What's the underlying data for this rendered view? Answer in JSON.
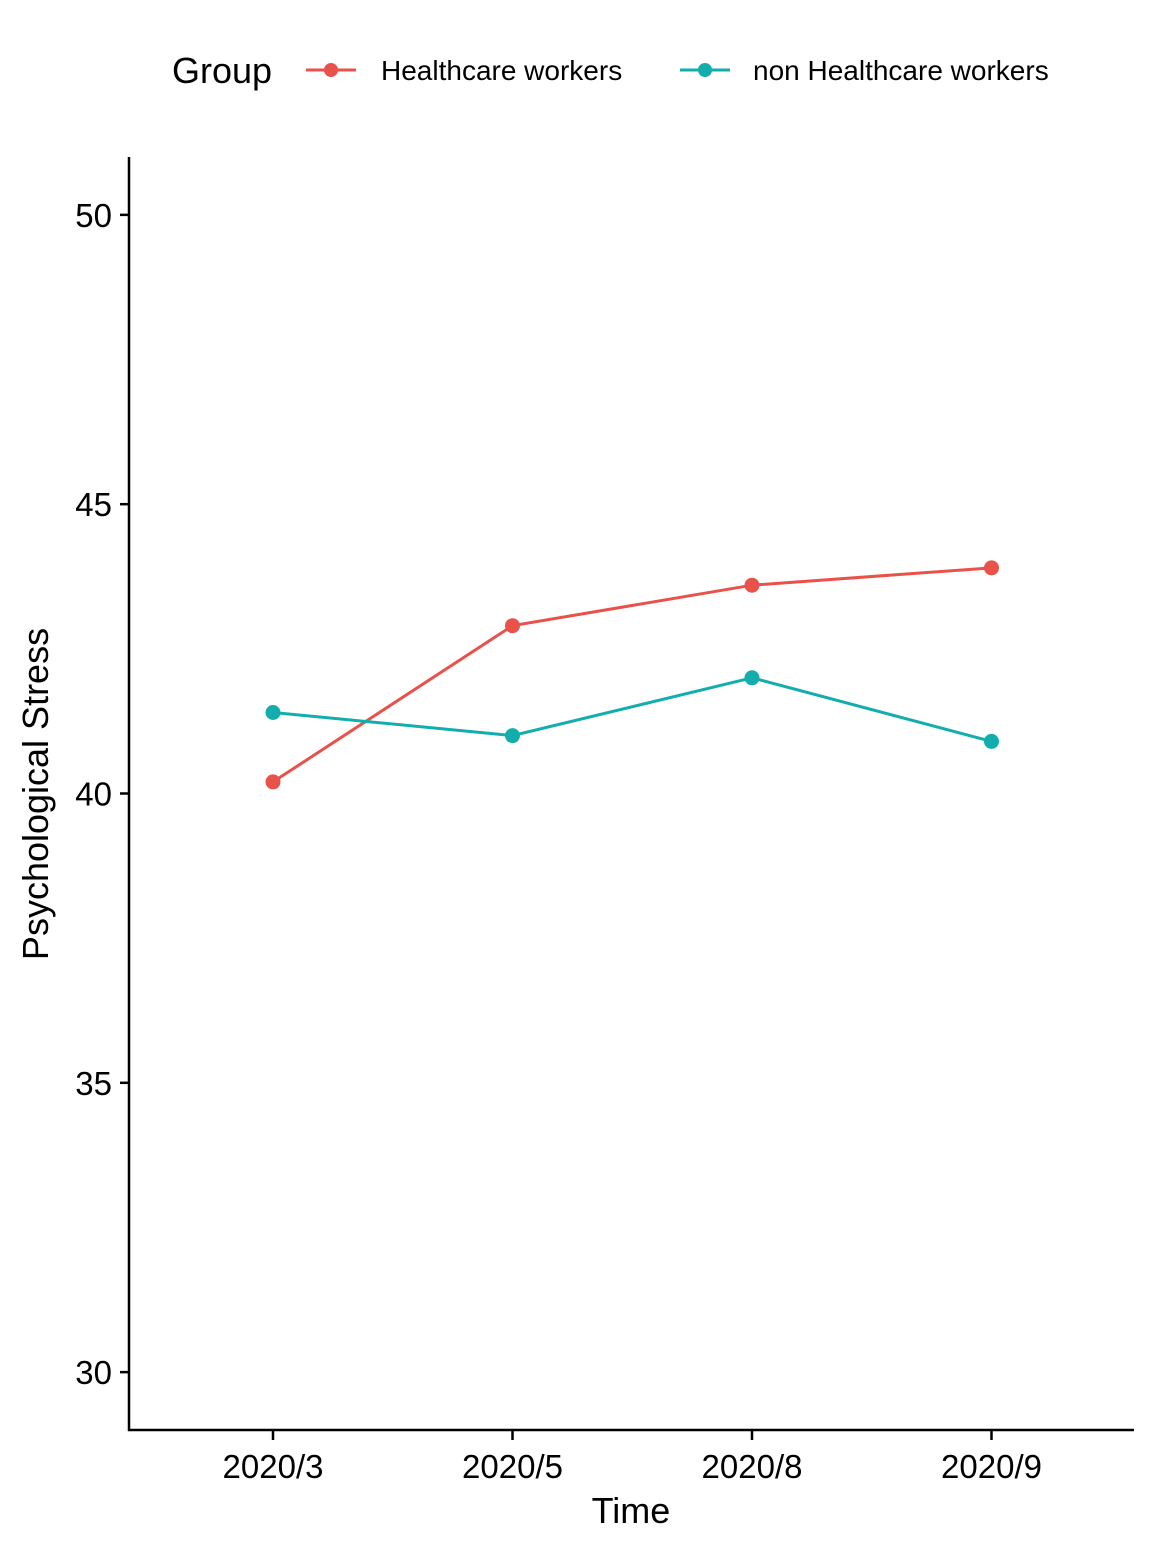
{
  "chart_data": {
    "type": "line",
    "title": "",
    "xlabel": "Time",
    "ylabel": "Psychological Stress",
    "categories": [
      "2020/3",
      "2020/5",
      "2020/8",
      "2020/9"
    ],
    "ylim": [
      29,
      51
    ],
    "yticks": [
      30,
      35,
      40,
      45,
      50
    ],
    "grid": false,
    "legend": {
      "title": "Group",
      "placement": "top"
    },
    "series": [
      {
        "name": "Healthcare workers",
        "color": "#E8524B",
        "values": [
          40.2,
          42.9,
          43.6,
          43.9
        ]
      },
      {
        "name": "non Healthcare workers",
        "color": "#14ADAE",
        "values": [
          41.4,
          41.0,
          42.0,
          40.9
        ]
      }
    ]
  }
}
